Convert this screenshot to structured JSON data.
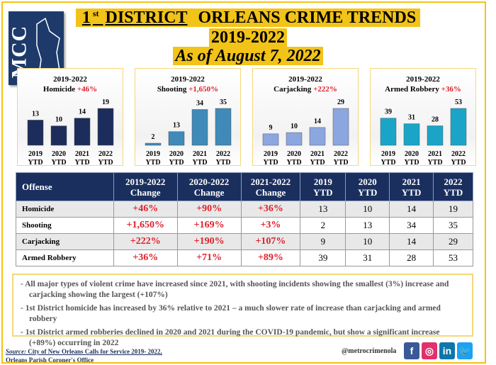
{
  "header": {
    "title_sup": "st",
    "title_num": "1",
    "title_district": "DISTRICT",
    "title_rest": " ORLEANS CRIME TRENDS",
    "years": "2019-2022",
    "as_of": "As of August 7, 2022",
    "logo_text": "MCC"
  },
  "chart_data": [
    {
      "type": "bar",
      "title_line1": "2019-2022",
      "title_line2": "Homicide",
      "change": "+46%",
      "categories": [
        "2019 YTD",
        "2020 YTD",
        "2021 YTD",
        "2022 YTD"
      ],
      "values": [
        13,
        10,
        14,
        19
      ],
      "color": "#1c2d5c"
    },
    {
      "type": "bar",
      "title_line1": "2019-2022",
      "title_line2": "Shooting",
      "change": "+1,650%",
      "categories": [
        "2019 YTD",
        "2020 YTD",
        "2021 YTD",
        "2022 YTD"
      ],
      "values": [
        2,
        13,
        34,
        35
      ],
      "color": "#3f8ab8"
    },
    {
      "type": "bar",
      "title_line1": "2019-2022",
      "title_line2": "Carjacking",
      "change": "+222%",
      "categories": [
        "2019 YTD",
        "2020 YTD",
        "2021 YTD",
        "2022 YTD"
      ],
      "values": [
        9,
        10,
        14,
        29
      ],
      "color": "#8ca6e0"
    },
    {
      "type": "bar",
      "title_line1": "2019-2022",
      "title_line2": "Armed Robbery",
      "change": "+36%",
      "categories": [
        "2019 YTD",
        "2020 YTD",
        "2021 YTD",
        "2022 YTD"
      ],
      "values": [
        39,
        31,
        28,
        53
      ],
      "color": "#1aa5c8"
    }
  ],
  "table": {
    "headers": [
      [
        "Offense"
      ],
      [
        "2019-2022",
        "Change"
      ],
      [
        "2020-2022",
        "Change"
      ],
      [
        "2021-2022",
        "Change"
      ],
      [
        "2019",
        "YTD"
      ],
      [
        "2020",
        "YTD"
      ],
      [
        "2021",
        "YTD"
      ],
      [
        "2022",
        "YTD"
      ]
    ],
    "rows": [
      [
        "Homicide",
        "+46%",
        "+90%",
        "+36%",
        "13",
        "10",
        "14",
        "19"
      ],
      [
        "Shooting",
        "+1,650%",
        "+169%",
        "+3%",
        "2",
        "13",
        "34",
        "35"
      ],
      [
        "Carjacking",
        "+222%",
        "+190%",
        "+107%",
        "9",
        "10",
        "14",
        "29"
      ],
      [
        "Armed Robbery",
        "+36%",
        "+71%",
        "+89%",
        "39",
        "31",
        "28",
        "53"
      ]
    ]
  },
  "notes": [
    "-   All major types of violent crime have increased since 2021, with shooting incidents showing the smallest (3%) increase and carjacking showing the largest (+107%)",
    "-   1st District homicide has increased by 36% relative to 2021 – a much slower rate of increase than carjacking and armed robbery",
    "-   1st District armed robberies declined in 2020 and 2021 during the COVID-19 pandemic, but show a significant increase (+89%) occurring in 2022"
  ],
  "footer": {
    "source_label": "Source:",
    "source_text": " City of New Orleans Calls for Service 2019- 2022,",
    "source_line2": "Orleans Parish Coroner's Office",
    "handle": "@metrocrimenola",
    "social": [
      {
        "icon": "facebook-icon",
        "glyph": "f",
        "color": "#3b5998"
      },
      {
        "icon": "instagram-icon",
        "glyph": "◎",
        "color": "#e1306c"
      },
      {
        "icon": "linkedin-icon",
        "glyph": "in",
        "color": "#0e76a8"
      },
      {
        "icon": "twitter-icon",
        "glyph": "🐦",
        "color": "#1da1f2"
      }
    ]
  }
}
